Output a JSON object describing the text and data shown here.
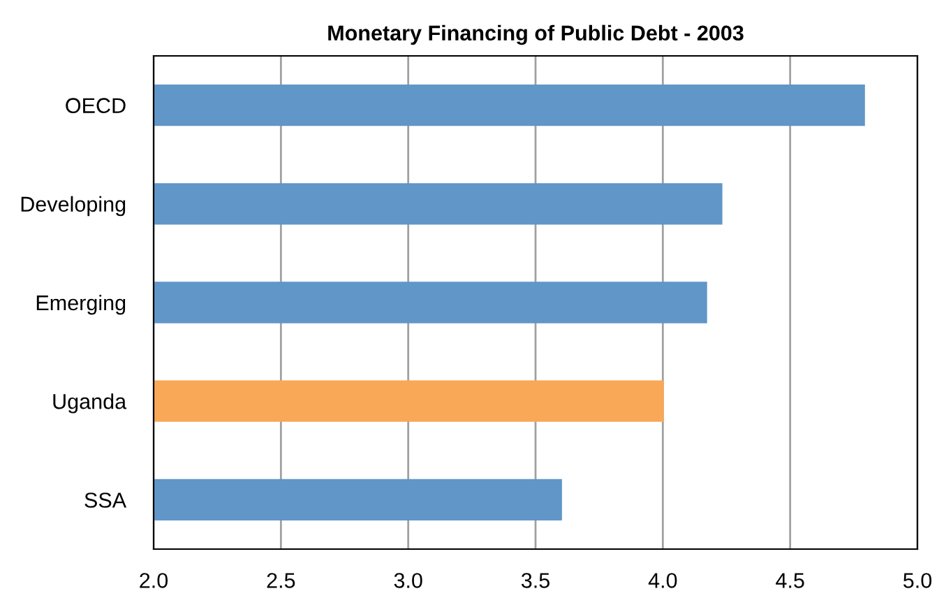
{
  "chart_data": {
    "type": "bar",
    "orientation": "horizontal",
    "title": "Monetary Financing of Public Debt - 2003",
    "categories": [
      "OECD",
      "Developing",
      "Emerging",
      "Uganda",
      "SSA"
    ],
    "values": [
      4.79,
      4.23,
      4.17,
      4.0,
      3.6
    ],
    "colors": [
      "#6096c8",
      "#6096c8",
      "#6096c8",
      "#f9a857",
      "#6096c8"
    ],
    "xlim": [
      2.0,
      5.0
    ],
    "xticks": [
      {
        "value": 2.0,
        "label": "2.0"
      },
      {
        "value": 2.5,
        "label": "2.5"
      },
      {
        "value": 3.0,
        "label": "3.0"
      },
      {
        "value": 3.5,
        "label": "3.5"
      },
      {
        "value": 4.0,
        "label": "4.0"
      },
      {
        "value": 4.5,
        "label": "4.5"
      },
      {
        "value": 5.0,
        "label": "5.0"
      }
    ],
    "grid": "x"
  }
}
